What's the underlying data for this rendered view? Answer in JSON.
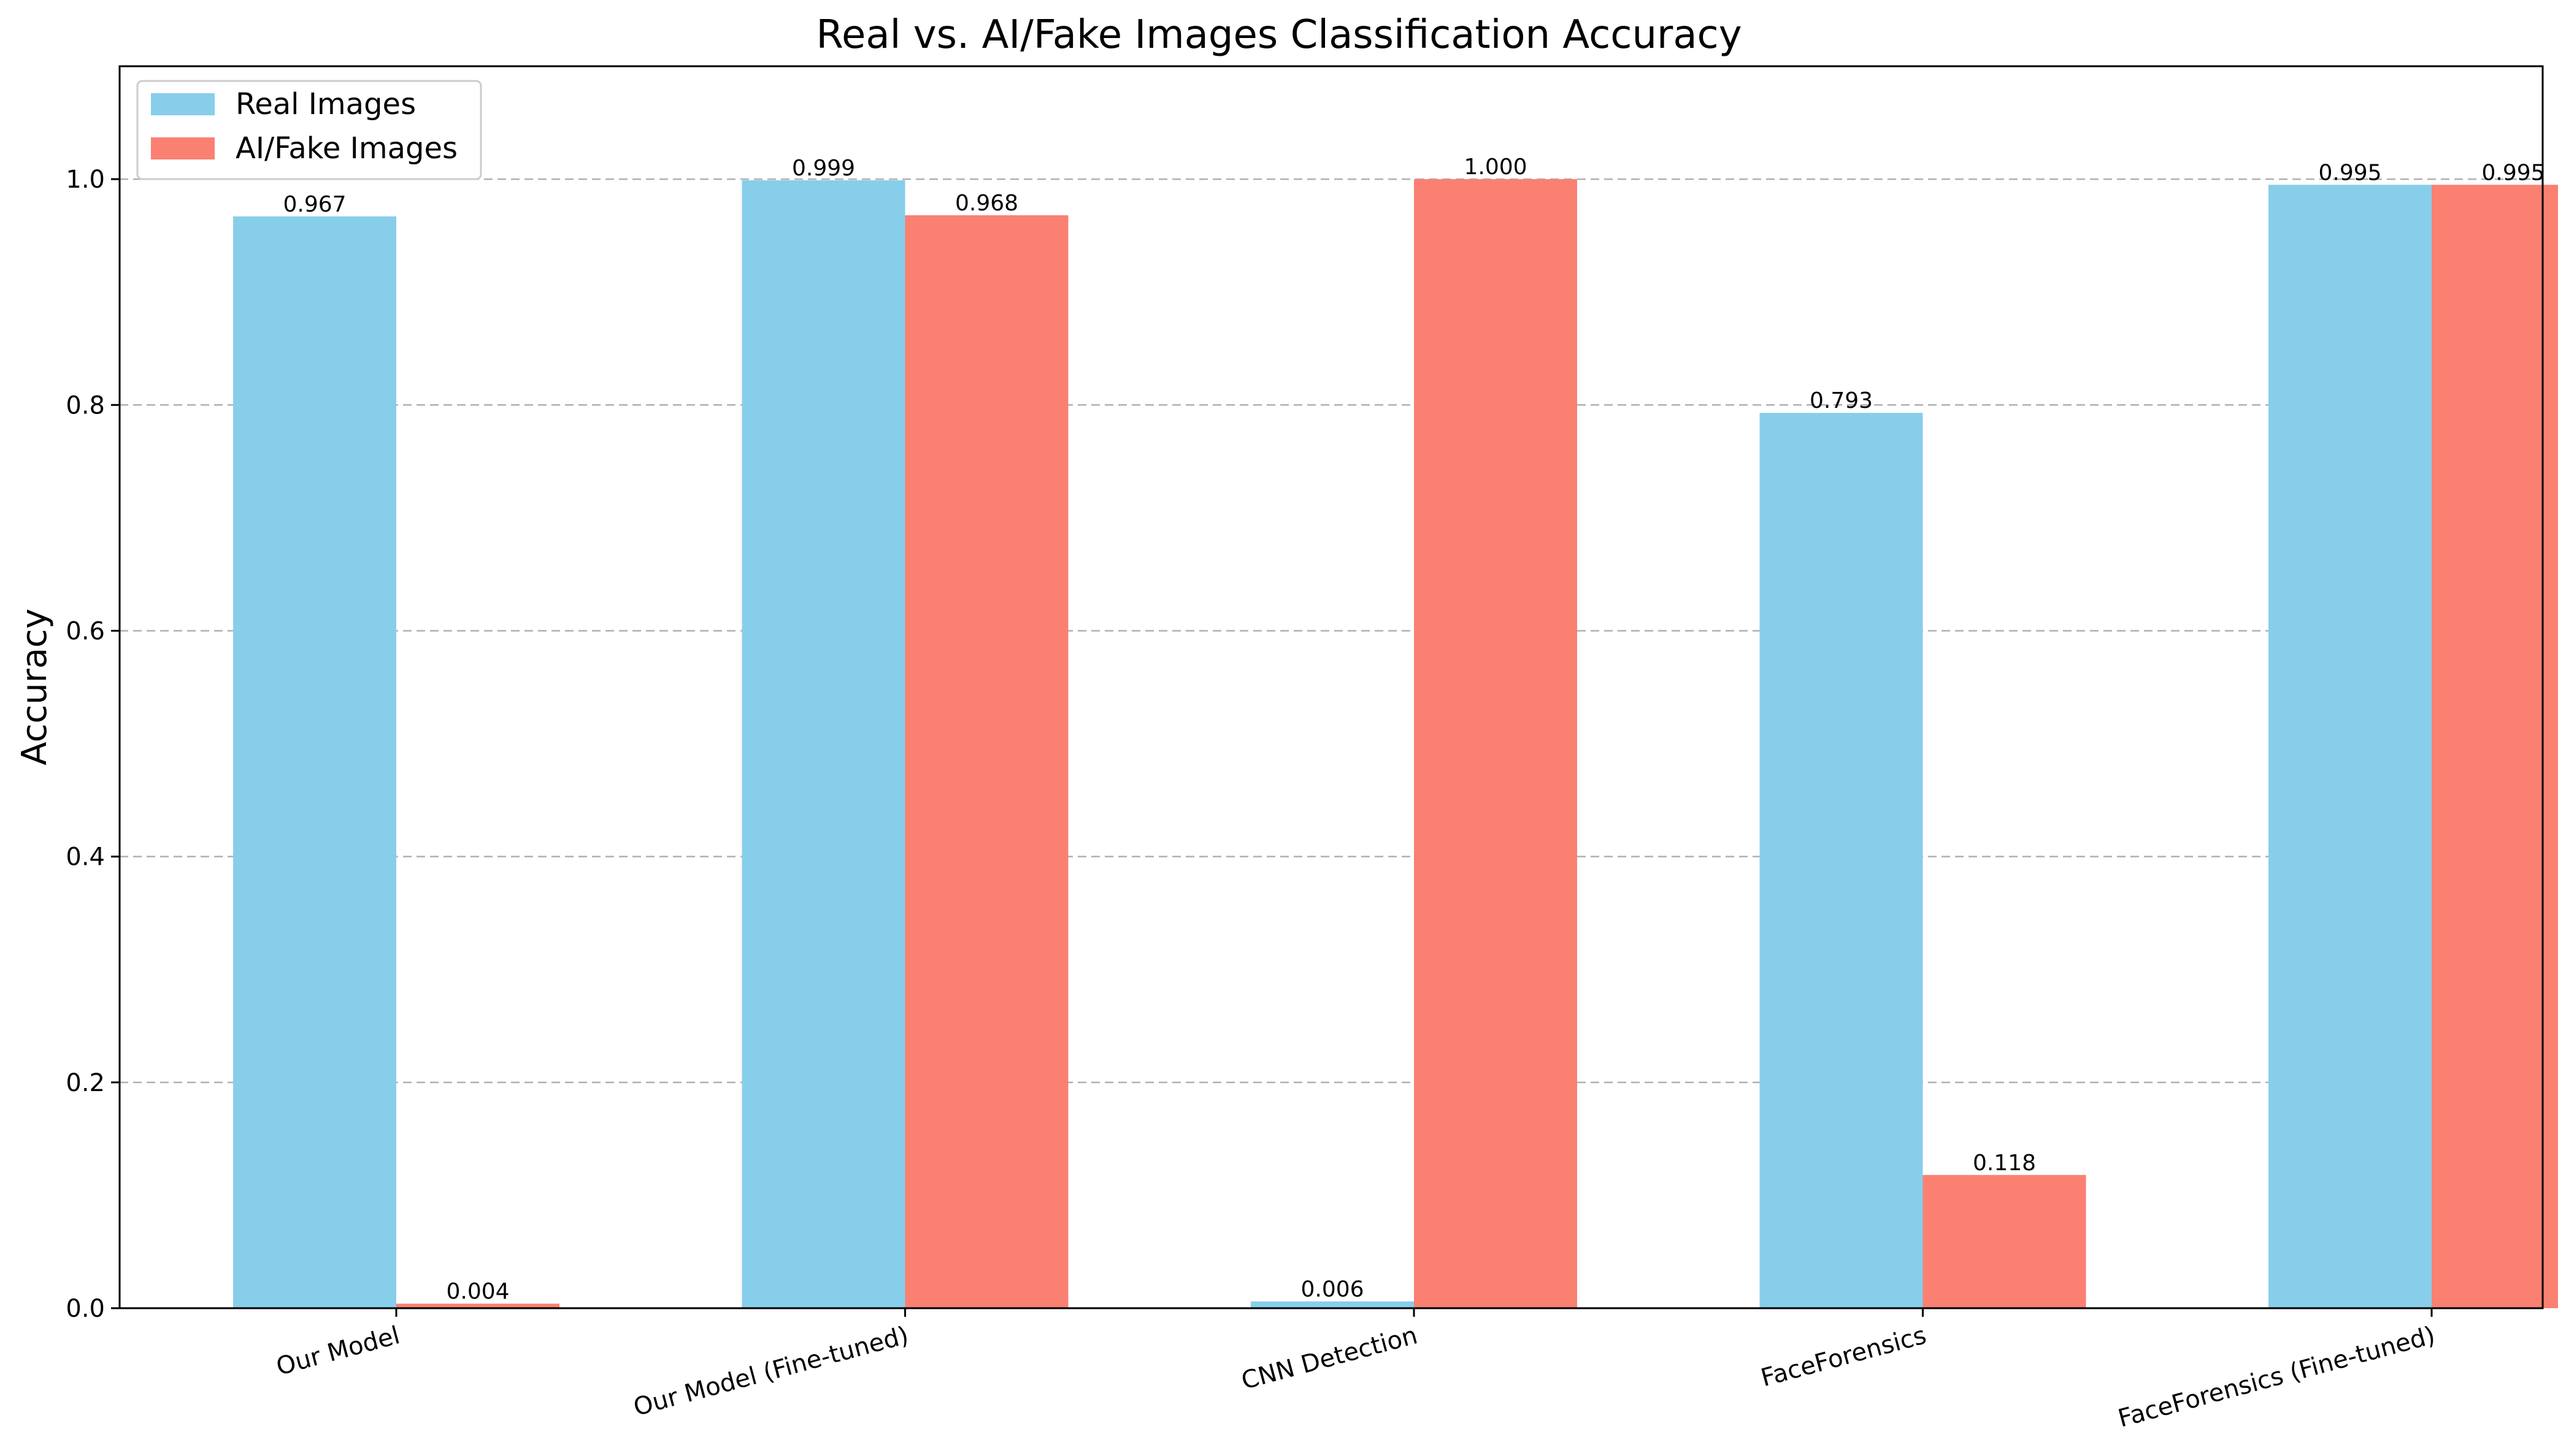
{
  "chart_data": {
    "type": "bar",
    "title": "Real vs. AI/Fake Images Classification Accuracy",
    "xlabel": "",
    "ylabel": "Accuracy",
    "ylim": [
      0,
      1.1
    ],
    "yticks": [
      0.0,
      0.2,
      0.4,
      0.6,
      0.8,
      1.0
    ],
    "ytick_labels": [
      "0.0",
      "0.2",
      "0.4",
      "0.6",
      "0.8",
      "1.0"
    ],
    "grid": "y, dashed",
    "legend_position": "top-left",
    "categories": [
      "Our Model",
      "Our Model (Fine-tuned)",
      "CNN Detection",
      "FaceForensics",
      "FaceForensics (Fine-tuned)"
    ],
    "series": [
      {
        "name": "Real Images",
        "color": "#87CEEB",
        "values": [
          0.967,
          0.999,
          0.006,
          0.793,
          0.995
        ],
        "labels": [
          "0.967",
          "0.999",
          "0.006",
          "0.793",
          "0.995"
        ]
      },
      {
        "name": "AI/Fake Images",
        "color": "#FA8072",
        "values": [
          0.004,
          0.968,
          1.0,
          0.118,
          0.995
        ],
        "labels": [
          "0.004",
          "0.968",
          "1.000",
          "0.118",
          "0.995"
        ]
      }
    ]
  }
}
